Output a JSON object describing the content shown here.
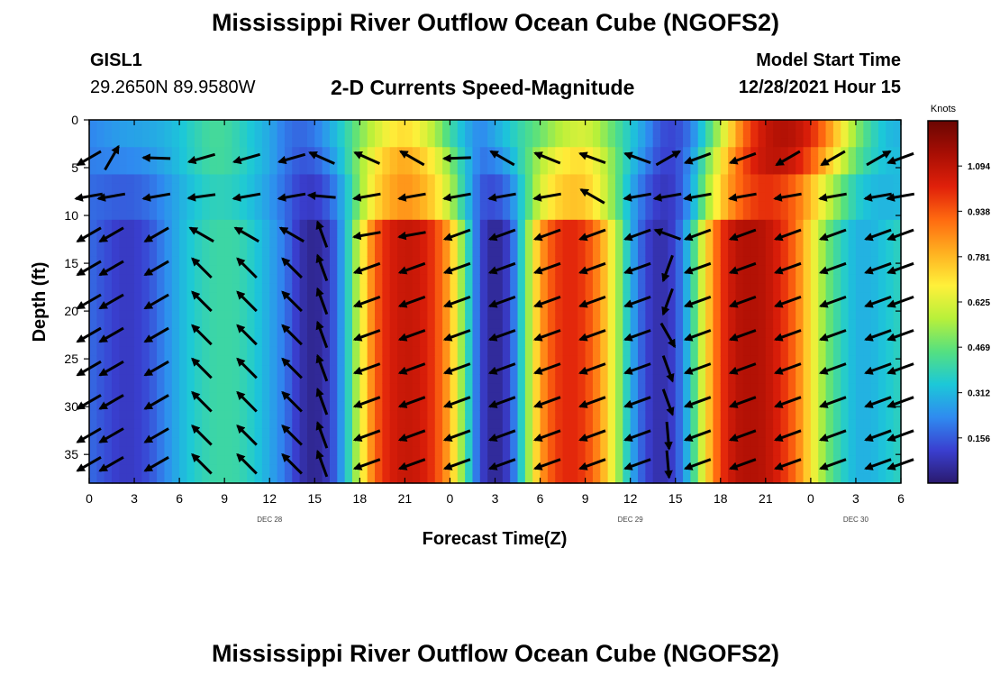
{
  "header": {
    "title": "Mississippi River Outflow Ocean Cube (NGOFS2)",
    "station": "GISL1",
    "coords": "29.2650N  89.9580W",
    "subtitle": "2-D Currents Speed-Magnitude",
    "model_label": "Model Start Time",
    "model_time": "12/28/2021 Hour 15"
  },
  "footer": {
    "title": "Mississippi River Outflow Ocean Cube (NGOFS2)"
  },
  "chart_data": {
    "type": "heatmap",
    "title": "2-D Currents Speed-Magnitude",
    "xlabel": "Forecast Time(Z)",
    "ylabel": "Depth (ft)",
    "x_ticks": [
      "0",
      "3",
      "6",
      "9",
      "12",
      "15",
      "18",
      "21",
      "0",
      "3",
      "6",
      "9",
      "12",
      "15",
      "18",
      "21",
      "0",
      "3",
      "6"
    ],
    "x_range_hours": [
      0,
      54
    ],
    "date_labels": [
      {
        "label": "DEC 28",
        "hour": 12
      },
      {
        "label": "DEC 29",
        "hour": 36
      },
      {
        "label": "DEC 30",
        "hour": 51
      }
    ],
    "y_ticks": [
      0,
      5,
      10,
      15,
      20,
      25,
      30,
      35
    ],
    "y_range_ft": [
      0,
      38
    ],
    "y_inverted": true,
    "colorbar": {
      "label": "Knots",
      "ticks": [
        "1.094",
        "0.938",
        "0.781",
        "0.625",
        "0.469",
        "0.312",
        "0.156"
      ],
      "tick_values": [
        1.094,
        0.938,
        0.781,
        0.625,
        0.469,
        0.312,
        0.156
      ],
      "range": [
        0,
        1.25
      ],
      "colors": [
        "#2a1a6e",
        "#3a3fd0",
        "#2f8bf0",
        "#1cc8d8",
        "#55e080",
        "#b8f03a",
        "#fff03a",
        "#ffb020",
        "#ff6a10",
        "#e0200a",
        "#a80e04",
        "#6a0602"
      ]
    },
    "speed_columns": {
      "hours": [
        0,
        1,
        2,
        3,
        4,
        5,
        6,
        7,
        8,
        9,
        10,
        11,
        12,
        13,
        14,
        15,
        16,
        17,
        18,
        19,
        20,
        21,
        22,
        23,
        24,
        25,
        26,
        27,
        28,
        29,
        30,
        31,
        32,
        33,
        34,
        35,
        36,
        37,
        38,
        39,
        40,
        41,
        42,
        43,
        44,
        45,
        46,
        47,
        48,
        49,
        50,
        51,
        52,
        53,
        54
      ],
      "surface_knots": [
        0.22,
        0.24,
        0.26,
        0.27,
        0.28,
        0.3,
        0.33,
        0.38,
        0.42,
        0.42,
        0.38,
        0.33,
        0.28,
        0.2,
        0.17,
        0.2,
        0.28,
        0.38,
        0.5,
        0.6,
        0.68,
        0.72,
        0.66,
        0.56,
        0.42,
        0.3,
        0.22,
        0.28,
        0.35,
        0.42,
        0.48,
        0.55,
        0.6,
        0.62,
        0.55,
        0.45,
        0.35,
        0.25,
        0.14,
        0.12,
        0.2,
        0.38,
        0.58,
        0.8,
        0.98,
        1.08,
        1.12,
        1.1,
        1.02,
        0.88,
        0.7,
        0.52,
        0.4,
        0.32,
        0.3
      ],
      "deep_knots": [
        0.18,
        0.14,
        0.1,
        0.1,
        0.14,
        0.22,
        0.3,
        0.36,
        0.4,
        0.41,
        0.4,
        0.35,
        0.28,
        0.2,
        0.08,
        0.03,
        0.1,
        0.3,
        0.62,
        0.92,
        1.04,
        1.08,
        1.06,
        0.98,
        0.8,
        0.45,
        0.12,
        0.03,
        0.12,
        0.45,
        0.82,
        0.98,
        1.02,
        0.98,
        0.84,
        0.6,
        0.3,
        0.12,
        0.06,
        0.12,
        0.35,
        0.7,
        0.98,
        1.1,
        1.12,
        1.1,
        1.02,
        0.9,
        0.7,
        0.5,
        0.38,
        0.3,
        0.3,
        0.34,
        0.38
      ]
    },
    "vector_columns_hours": [
      0,
      1.5,
      4.5,
      7.5,
      10.5,
      13.5,
      15.5,
      18.5,
      21.5,
      24.5,
      27.5,
      30.5,
      33.5,
      36.5,
      38.5,
      40.5,
      43.5,
      46.5,
      49.5,
      52.5,
      54
    ],
    "vector_rows_ft": [
      4,
      8,
      12,
      15.5,
      19,
      22.5,
      26,
      29.5,
      33,
      36
    ],
    "vector_angles_deg": [
      [
        210,
        60,
        178,
        196,
        196,
        196,
        156,
        156,
        150,
        182,
        150,
        158,
        160,
        160,
        30,
        200,
        200,
        210,
        210,
        30,
        200
      ],
      [
        190,
        190,
        190,
        188,
        190,
        190,
        175,
        190,
        190,
        190,
        190,
        190,
        150,
        190,
        190,
        190,
        190,
        190,
        190,
        190,
        190
      ],
      [
        210,
        210,
        210,
        150,
        150,
        150,
        110,
        190,
        190,
        200,
        200,
        200,
        200,
        200,
        160,
        200,
        200,
        200,
        200,
        200,
        200
      ],
      [
        210,
        210,
        210,
        135,
        135,
        135,
        110,
        200,
        200,
        200,
        200,
        200,
        200,
        200,
        250,
        200,
        200,
        200,
        200,
        200,
        200
      ],
      [
        210,
        210,
        210,
        135,
        135,
        135,
        110,
        200,
        200,
        200,
        200,
        200,
        200,
        200,
        250,
        200,
        200,
        200,
        200,
        200,
        200
      ],
      [
        210,
        210,
        210,
        135,
        135,
        135,
        110,
        200,
        200,
        200,
        200,
        200,
        200,
        200,
        300,
        200,
        200,
        200,
        200,
        200,
        200
      ],
      [
        210,
        210,
        210,
        135,
        135,
        135,
        110,
        200,
        200,
        200,
        200,
        200,
        200,
        200,
        290,
        200,
        200,
        200,
        200,
        200,
        200
      ],
      [
        210,
        210,
        210,
        135,
        135,
        135,
        110,
        200,
        200,
        200,
        200,
        200,
        200,
        200,
        290,
        200,
        200,
        200,
        200,
        200,
        200
      ],
      [
        210,
        210,
        210,
        135,
        135,
        135,
        110,
        200,
        200,
        200,
        200,
        200,
        200,
        200,
        275,
        200,
        200,
        200,
        200,
        200,
        200
      ],
      [
        210,
        210,
        210,
        135,
        135,
        135,
        110,
        200,
        200,
        200,
        200,
        200,
        200,
        200,
        275,
        200,
        200,
        200,
        200,
        200,
        200
      ]
    ]
  }
}
